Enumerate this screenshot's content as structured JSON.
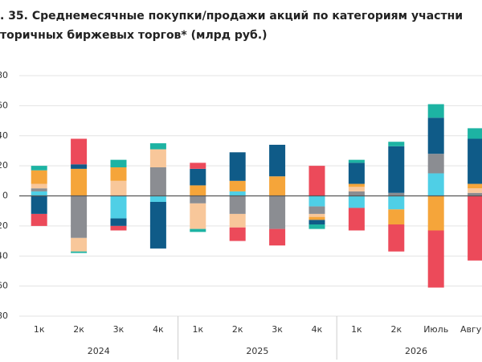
{
  "chart_data": {
    "type": "stacked-bar",
    "title": [
      ". 35. Среднемесячные покупки/продажи акций по категориям участни",
      "торичных биржевых торгов* (млрд руб.)"
    ],
    "categories": [
      "1к",
      "2к",
      "3к",
      "4к",
      "1к",
      "2к",
      "3к",
      "4к",
      "1к",
      "2к",
      "Июль",
      "Авгу"
    ],
    "group_labels": [
      "2024",
      "2025",
      "2026"
    ],
    "ylim": [
      -80,
      80
    ],
    "yticks": [
      80,
      60,
      40,
      20,
      0,
      -20,
      -40,
      -60,
      -80
    ],
    "grid": true,
    "series": [
      {
        "color": "#4fcfe6",
        "values": [
          3,
          0,
          -15,
          -4,
          0,
          3,
          0,
          -7,
          -8,
          -9,
          15,
          0
        ]
      },
      {
        "color": "#8b8d92",
        "values": [
          2,
          -28,
          0,
          19,
          -5,
          -12,
          -22,
          -5,
          3,
          2,
          13,
          2
        ]
      },
      {
        "color": "#f8c79a",
        "values": [
          3,
          -9,
          10,
          12,
          -17,
          -9,
          0,
          -2,
          3,
          0,
          0,
          3
        ]
      },
      {
        "color": "#f5a53a",
        "values": [
          9,
          18,
          9,
          0,
          7,
          7,
          13,
          -2,
          2,
          -10,
          -23,
          3
        ]
      },
      {
        "color": "#0f5b88",
        "values": [
          -12,
          3,
          -5,
          -31,
          11,
          19,
          21,
          -3,
          14,
          31,
          24,
          30
        ]
      },
      {
        "color": "#ec4a5a",
        "values": [
          -8,
          17,
          -3,
          0,
          4,
          -9,
          -11,
          20,
          -15,
          -18,
          -38,
          -43
        ]
      },
      {
        "color": "#1db3a3",
        "values": [
          3,
          -1,
          5,
          4,
          -2,
          0,
          0,
          -3,
          2,
          3,
          9,
          7
        ]
      }
    ]
  }
}
